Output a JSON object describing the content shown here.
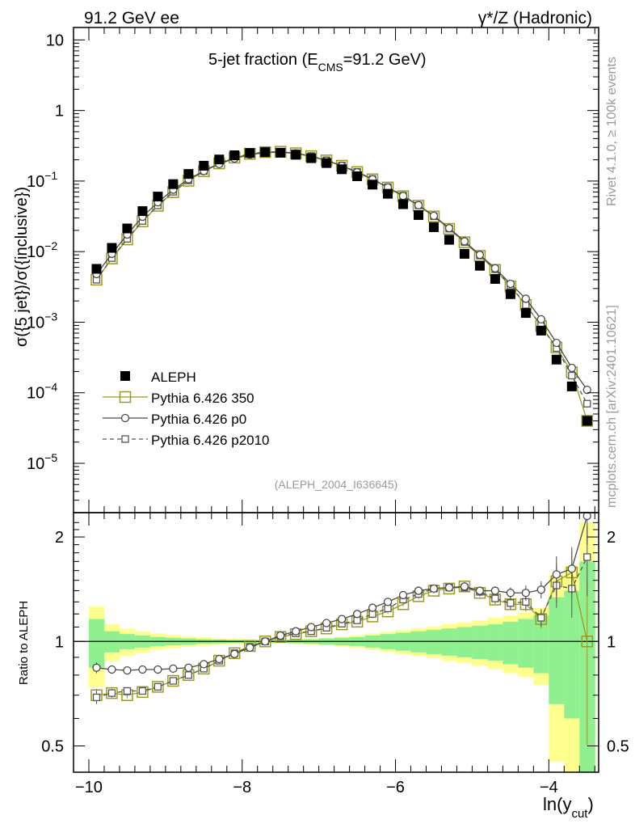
{
  "header": {
    "left": "91.2 GeV ee",
    "right": "γ*/Z (Hadronic)"
  },
  "side_notes": {
    "rivet": "Rivet 4.1.0, ≥ 100k events",
    "source": "mcplots.cern.ch [arXiv:2401.10621]"
  },
  "chart_data": [
    {
      "type": "scatter",
      "title": "5-jet fraction (E_CMS=91.2 GeV)",
      "title_main": "5-jet fraction (E",
      "title_sub": "CMS",
      "title_end": "=91.2 GeV)",
      "analysis": "(ALEPH_2004_I636645)",
      "ylabel": "σ({5 jet})/σ({inclusive})",
      "yscale": "log",
      "ylim": [
        2e-06,
        15
      ],
      "xlim": [
        -10.2,
        -3.35
      ],
      "ytick_labels": [
        {
          "value": 10,
          "mant": "10",
          "exp": ""
        },
        {
          "value": 1,
          "mant": "1",
          "exp": ""
        },
        {
          "value": 0.1,
          "mant": "10",
          "exp": "−1"
        },
        {
          "value": 0.01,
          "mant": "10",
          "exp": "−2"
        },
        {
          "value": 0.001,
          "mant": "10",
          "exp": "−3"
        },
        {
          "value": 0.0001,
          "mant": "10",
          "exp": "−4"
        },
        {
          "value": 1e-05,
          "mant": "10",
          "exp": "−5"
        }
      ],
      "legend_position": "lower-left",
      "x": [
        -9.9,
        -9.7,
        -9.5,
        -9.3,
        -9.1,
        -8.9,
        -8.7,
        -8.5,
        -8.3,
        -8.1,
        -7.9,
        -7.7,
        -7.5,
        -7.3,
        -7.1,
        -6.9,
        -6.7,
        -6.5,
        -6.3,
        -6.1,
        -5.9,
        -5.7,
        -5.5,
        -5.3,
        -5.1,
        -4.9,
        -4.7,
        -4.5,
        -4.3,
        -4.1,
        -3.9,
        -3.7,
        -3.5
      ],
      "series": [
        {
          "name": "ALEPH",
          "style": "data",
          "color": "#000000",
          "values": [
            0.0057,
            0.0113,
            0.0213,
            0.0375,
            0.0603,
            0.0905,
            0.126,
            0.165,
            0.202,
            0.232,
            0.25,
            0.257,
            0.252,
            0.236,
            0.211,
            0.18,
            0.147,
            0.117,
            0.089,
            0.066,
            0.047,
            0.033,
            0.0222,
            0.0147,
            0.0093,
            0.0063,
            0.0041,
            0.0025,
            0.00135,
            0.00076,
            0.000295,
            0.000123,
            4e-05
          ]
        },
        {
          "name": "Pythia 6.426 350",
          "style": "open-square-large",
          "color": "#9a9a22",
          "values": [
            0.004,
            0.008,
            0.0149,
            0.0268,
            0.0446,
            0.0697,
            0.101,
            0.138,
            0.178,
            0.215,
            0.243,
            0.257,
            0.26,
            0.248,
            0.225,
            0.196,
            0.165,
            0.134,
            0.106,
            0.081,
            0.061,
            0.0448,
            0.0315,
            0.021,
            0.0136,
            0.0087,
            0.0055,
            0.0032,
            0.00175,
            0.00088,
            0.00044,
            0.000195,
            4e-05
          ]
        },
        {
          "name": "Pythia 6.426 p0",
          "style": "open-circle",
          "color": "#4a4a4a",
          "values": [
            0.0048,
            0.0093,
            0.0175,
            0.0312,
            0.05,
            0.0755,
            0.106,
            0.139,
            0.174,
            0.209,
            0.236,
            0.253,
            0.257,
            0.246,
            0.224,
            0.195,
            0.164,
            0.133,
            0.106,
            0.081,
            0.0615,
            0.0455,
            0.0322,
            0.0215,
            0.014,
            0.009,
            0.0058,
            0.0035,
            0.00215,
            0.0011,
            0.00051,
            0.000225,
            0.00011
          ]
        },
        {
          "name": "Pythia 6.426 p2010",
          "style": "open-square-small-dashed",
          "color": "#555555",
          "values": [
            0.004,
            0.0081,
            0.0152,
            0.0272,
            0.0452,
            0.0705,
            0.102,
            0.139,
            0.179,
            0.216,
            0.244,
            0.258,
            0.26,
            0.248,
            0.226,
            0.197,
            0.166,
            0.135,
            0.107,
            0.082,
            0.062,
            0.0452,
            0.0318,
            0.0212,
            0.0137,
            0.0088,
            0.0056,
            0.0033,
            0.00176,
            0.00089,
            0.00043,
            0.000175,
            7e-05
          ]
        }
      ]
    },
    {
      "type": "scatter",
      "ylabel": "Ratio to ALEPH",
      "xlabel": "ln(y_cut)",
      "xlabel_main": "ln(y",
      "xlabel_sub": "cut",
      "xlabel_end": ")",
      "yscale": "log",
      "ylim": [
        0.42,
        2.35
      ],
      "xlim": [
        -10.2,
        -3.35
      ],
      "xticks": [
        {
          "value": -10,
          "label": "−10"
        },
        {
          "value": -8,
          "label": "−8"
        },
        {
          "value": -6,
          "label": "−6"
        },
        {
          "value": -4,
          "label": "−4"
        }
      ],
      "yticks": [
        {
          "value": 0.5,
          "label": "0.5"
        },
        {
          "value": 1,
          "label": "1"
        },
        {
          "value": 2,
          "label": "2"
        }
      ],
      "bands": {
        "stat_color": "#90f090",
        "total_color": "#ffff90",
        "stat_halfwidth": [
          0.16,
          0.07,
          0.05,
          0.04,
          0.03,
          0.025,
          0.02,
          0.015,
          0.013,
          0.01,
          0.01,
          0.01,
          0.01,
          0.012,
          0.015,
          0.02,
          0.025,
          0.03,
          0.04,
          0.05,
          0.06,
          0.07,
          0.08,
          0.09,
          0.1,
          0.11,
          0.12,
          0.14,
          0.16,
          0.19,
          0.34,
          0.4,
          0.7
        ],
        "total_halfwidth": [
          0.26,
          0.12,
          0.09,
          0.07,
          0.055,
          0.045,
          0.035,
          0.028,
          0.022,
          0.018,
          0.015,
          0.013,
          0.013,
          0.016,
          0.02,
          0.025,
          0.033,
          0.042,
          0.055,
          0.068,
          0.08,
          0.092,
          0.105,
          0.12,
          0.135,
          0.15,
          0.17,
          0.19,
          0.21,
          0.25,
          0.55,
          0.65,
          1.2
        ]
      },
      "series": [
        {
          "name": "Pythia 6.426 350",
          "style": "open-square-large",
          "color": "#9a9a22",
          "values": [
            0.7,
            0.71,
            0.7,
            0.715,
            0.74,
            0.77,
            0.8,
            0.835,
            0.88,
            0.925,
            0.97,
            1.0,
            1.03,
            1.05,
            1.07,
            1.09,
            1.12,
            1.14,
            1.18,
            1.22,
            1.28,
            1.35,
            1.4,
            1.42,
            1.44,
            1.38,
            1.32,
            1.28,
            1.28,
            1.16,
            1.49,
            1.58,
            1.0
          ],
          "err": [
            0.03,
            0.02,
            0.015,
            0.01,
            0.01,
            0.01,
            0.01,
            0.008,
            0.008,
            0.008,
            0.008,
            0.008,
            0.008,
            0.008,
            0.01,
            0.01,
            0.01,
            0.012,
            0.015,
            0.018,
            0.02,
            0.025,
            0.025,
            0.03,
            0.03,
            0.035,
            0.04,
            0.05,
            0.06,
            0.07,
            0.2,
            0.25,
            0.5
          ]
        },
        {
          "name": "Pythia 6.426 p0",
          "style": "open-circle",
          "color": "#4a4a4a",
          "values": [
            0.84,
            0.83,
            0.825,
            0.83,
            0.83,
            0.835,
            0.84,
            0.86,
            0.89,
            0.92,
            0.96,
            1.0,
            1.04,
            1.07,
            1.1,
            1.13,
            1.16,
            1.2,
            1.25,
            1.3,
            1.36,
            1.4,
            1.42,
            1.43,
            1.44,
            1.4,
            1.4,
            1.38,
            1.38,
            1.41,
            1.56,
            1.62,
            2.3
          ],
          "err": [
            0.03,
            0.02,
            0.015,
            0.01,
            0.01,
            0.01,
            0.01,
            0.008,
            0.008,
            0.008,
            0.008,
            0.008,
            0.008,
            0.008,
            0.01,
            0.01,
            0.01,
            0.012,
            0.015,
            0.018,
            0.02,
            0.025,
            0.025,
            0.03,
            0.03,
            0.035,
            0.04,
            0.05,
            0.07,
            0.08,
            0.2,
            0.25,
            0.4
          ]
        },
        {
          "name": "Pythia 6.426 p2010",
          "style": "open-square-small-dashed",
          "color": "#555555",
          "values": [
            0.69,
            0.71,
            0.72,
            0.72,
            0.74,
            0.77,
            0.8,
            0.835,
            0.88,
            0.925,
            0.965,
            1.0,
            1.035,
            1.055,
            1.07,
            1.095,
            1.125,
            1.15,
            1.2,
            1.245,
            1.32,
            1.37,
            1.42,
            1.43,
            1.43,
            1.39,
            1.33,
            1.29,
            1.3,
            1.17,
            1.45,
            1.42,
            1.75
          ],
          "err": [
            0.03,
            0.02,
            0.015,
            0.01,
            0.01,
            0.01,
            0.01,
            0.008,
            0.008,
            0.008,
            0.008,
            0.008,
            0.008,
            0.008,
            0.01,
            0.01,
            0.01,
            0.012,
            0.015,
            0.018,
            0.02,
            0.025,
            0.025,
            0.03,
            0.03,
            0.035,
            0.04,
            0.05,
            0.06,
            0.07,
            0.2,
            0.25,
            0.4
          ]
        }
      ]
    }
  ]
}
